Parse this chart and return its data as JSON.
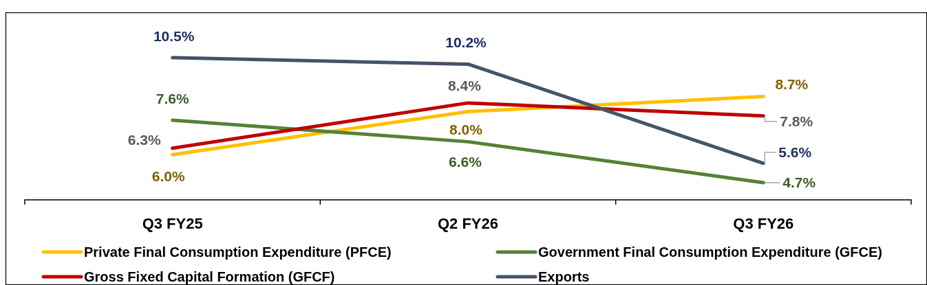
{
  "chart_data": {
    "type": "line",
    "categories": [
      "Q3 FY25",
      "Q2 FY26",
      "Q3 FY26"
    ],
    "series": [
      {
        "name": "Private Final Consumption Expenditure (PFCE)",
        "color": "#ffc000",
        "values": [
          6.0,
          8.0,
          8.7
        ],
        "value_labels": [
          "6.0%",
          "8.0%",
          "8.7%"
        ]
      },
      {
        "name": "Government Final Consumption Expenditure (GFCE)",
        "color": "#548235",
        "values": [
          7.6,
          6.6,
          4.7
        ],
        "value_labels": [
          "7.6%",
          "6.6%",
          "4.7%"
        ]
      },
      {
        "name": "Gross Fixed Capital Formation (GFCF)",
        "color": "#c00000",
        "values": [
          6.3,
          8.4,
          7.8
        ],
        "value_labels": [
          "6.3%",
          "8.4%",
          "7.8%"
        ]
      },
      {
        "name": "Exports",
        "color": "#44546a",
        "values": [
          10.5,
          10.2,
          5.6
        ],
        "value_labels": [
          "10.5%",
          "10.2%",
          "5.6%"
        ]
      }
    ],
    "tick_labels": "x",
    "legend": "bottom",
    "marker": "none",
    "line_style": "solid"
  }
}
